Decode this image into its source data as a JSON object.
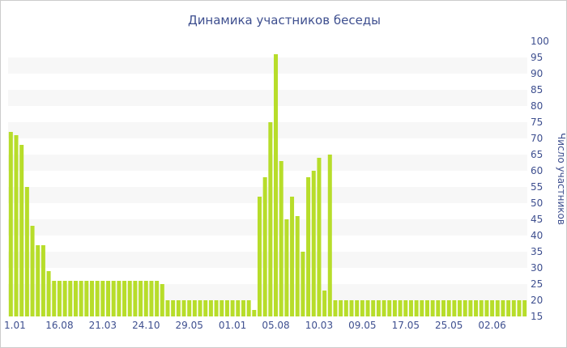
{
  "chart_data": {
    "type": "bar",
    "title": "Динамика участников беседы",
    "xlabel": "",
    "ylabel": "Число участников",
    "ylim": [
      15,
      100
    ],
    "yticks": [
      15,
      20,
      25,
      30,
      35,
      40,
      45,
      50,
      55,
      60,
      65,
      70,
      75,
      80,
      85,
      90,
      95,
      100
    ],
    "grid": "alternating horizontal bands",
    "y_axis_position": "right",
    "bar_color": "#b7dd2a",
    "band_color": "#f7f7f7",
    "text_color": "#3e4f8f",
    "x_tick_labels": [
      {
        "index": 0,
        "label": "1.01"
      },
      {
        "index": 9,
        "label": "16.08"
      },
      {
        "index": 17,
        "label": "21.03"
      },
      {
        "index": 25,
        "label": "24.10"
      },
      {
        "index": 33,
        "label": "29.05"
      },
      {
        "index": 41,
        "label": "01.01"
      },
      {
        "index": 49,
        "label": "05.08"
      },
      {
        "index": 57,
        "label": "10.03"
      },
      {
        "index": 65,
        "label": "09.05"
      },
      {
        "index": 73,
        "label": "17.05"
      },
      {
        "index": 81,
        "label": "25.05"
      },
      {
        "index": 89,
        "label": "02.06"
      }
    ],
    "values": [
      72,
      71,
      68,
      55,
      43,
      37,
      37,
      29,
      26,
      26,
      26,
      26,
      26,
      26,
      26,
      26,
      26,
      26,
      26,
      26,
      26,
      26,
      26,
      26,
      26,
      26,
      26,
      26,
      25,
      20,
      20,
      20,
      20,
      20,
      20,
      20,
      20,
      20,
      20,
      20,
      20,
      20,
      20,
      20,
      20,
      17,
      52,
      58,
      75,
      96,
      63,
      45,
      52,
      46,
      35,
      58,
      60,
      64,
      23,
      65,
      20,
      20,
      20,
      20,
      20,
      20,
      20,
      20,
      20,
      20,
      20,
      20,
      20,
      20,
      20,
      20,
      20,
      20,
      20,
      20,
      20,
      20,
      20,
      20,
      20,
      20,
      20,
      20,
      20,
      20,
      20,
      20,
      20,
      20,
      20,
      20
    ]
  }
}
